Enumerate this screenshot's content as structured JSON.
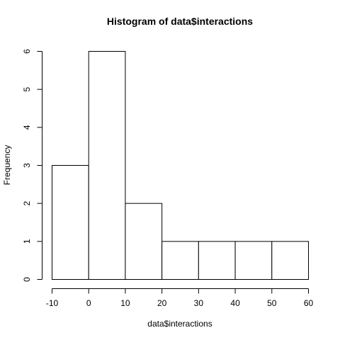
{
  "chart_data": {
    "type": "bar",
    "title": "Histogram of data$interactions",
    "xlabel": "data$interactions",
    "ylabel": "Frequency",
    "bins": [
      {
        "start": -10,
        "end": 0,
        "count": 3
      },
      {
        "start": 0,
        "end": 10,
        "count": 6
      },
      {
        "start": 10,
        "end": 20,
        "count": 2
      },
      {
        "start": 20,
        "end": 30,
        "count": 1
      },
      {
        "start": 30,
        "end": 40,
        "count": 1
      },
      {
        "start": 40,
        "end": 50,
        "count": 1
      },
      {
        "start": 50,
        "end": 60,
        "count": 1
      }
    ],
    "xlim": [
      -10,
      60
    ],
    "ylim": [
      0,
      6
    ],
    "x_ticks": [
      "-10",
      "0",
      "10",
      "20",
      "30",
      "40",
      "50",
      "60"
    ],
    "y_ticks": [
      "0",
      "1",
      "2",
      "3",
      "4",
      "5",
      "6"
    ],
    "grid": false,
    "legend": "none"
  }
}
